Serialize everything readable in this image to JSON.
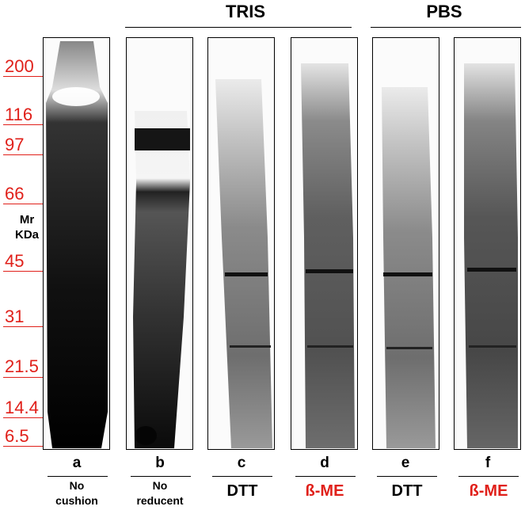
{
  "markers": {
    "labels": [
      "200",
      "116",
      "97",
      "66",
      "45",
      "31",
      "21.5",
      "14.4",
      "6.5"
    ],
    "unit_label_line1": "Mr",
    "unit_label_line2": "KDa",
    "color": "#e0201a"
  },
  "groups": [
    {
      "title": "TRIS"
    },
    {
      "title": "PBS"
    }
  ],
  "lanes": [
    {
      "letter": "a",
      "condition_line1": "No",
      "condition_line2": "cushion"
    },
    {
      "letter": "b",
      "condition_line1": "No",
      "condition_line2": "reducent"
    },
    {
      "letter": "c",
      "condition": "DTT"
    },
    {
      "letter": "d",
      "condition": "ß-ME"
    },
    {
      "letter": "e",
      "condition": "DTT"
    },
    {
      "letter": "f",
      "condition": "ß-ME"
    }
  ]
}
